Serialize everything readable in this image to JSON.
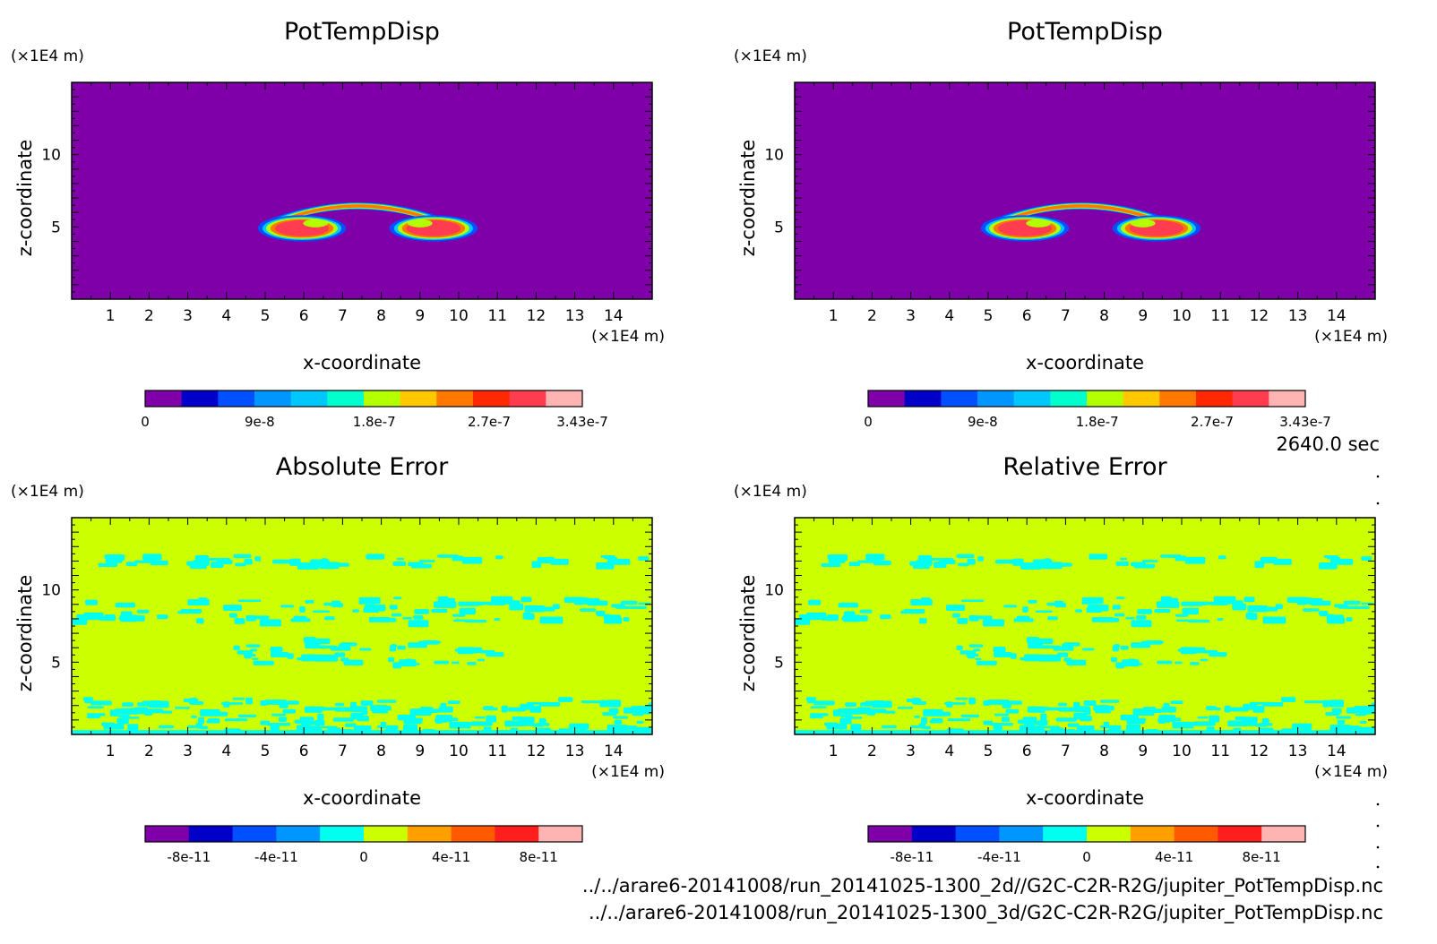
{
  "time_label": "2640.0 sec",
  "file_paths": [
    "../../arare6-20141008/run_20141025-1300_2d//G2C-C2R-R2G/jupiter_PotTempDisp.nc",
    "../../arare6-20141008/run_20141025-1300_3d/G2C-C2R-R2G/jupiter_PotTempDisp.nc"
  ],
  "colors": {
    "purple": "#7f00a8",
    "yellow_green": "#ccff00",
    "cyan": "#00ffee"
  },
  "chart_data": [
    {
      "type": "heatmap",
      "title": "PotTempDisp",
      "xlabel": "x-coordinate",
      "ylabel": "z-coordinate",
      "x_unit": "(×1E4 m)",
      "y_unit": "(×1E4 m)",
      "xlim": [
        0,
        15
      ],
      "ylim": [
        0,
        15
      ],
      "x_ticks": [
        1,
        2,
        3,
        4,
        5,
        6,
        7,
        8,
        9,
        10,
        11,
        12,
        13,
        14
      ],
      "y_ticks": [
        5,
        10
      ],
      "field": "thermal",
      "colorbar": {
        "colors": [
          "#7f00a8",
          "#0000c8",
          "#0050ff",
          "#0096ff",
          "#00c8ff",
          "#00ffcc",
          "#b4ff00",
          "#ffc800",
          "#ff7800",
          "#ff2800",
          "#ff3c50",
          "#ffb4b4"
        ],
        "tick_labels": [
          "0",
          "9e-8",
          "1.8e-7",
          "2.7e-7",
          "3.43e-7"
        ],
        "tick_positions": [
          0,
          0.262,
          0.524,
          0.787,
          1.0
        ],
        "range": [
          0,
          3.43e-07
        ]
      }
    },
    {
      "type": "heatmap",
      "title": "PotTempDisp",
      "xlabel": "x-coordinate",
      "ylabel": "z-coordinate",
      "x_unit": "(×1E4 m)",
      "y_unit": "(×1E4 m)",
      "xlim": [
        0,
        15
      ],
      "ylim": [
        0,
        15
      ],
      "x_ticks": [
        1,
        2,
        3,
        4,
        5,
        6,
        7,
        8,
        9,
        10,
        11,
        12,
        13,
        14
      ],
      "y_ticks": [
        5,
        10
      ],
      "field": "thermal",
      "colorbar": {
        "colors": [
          "#7f00a8",
          "#0000c8",
          "#0050ff",
          "#0096ff",
          "#00c8ff",
          "#00ffcc",
          "#b4ff00",
          "#ffc800",
          "#ff7800",
          "#ff2800",
          "#ff3c50",
          "#ffb4b4"
        ],
        "tick_labels": [
          "0",
          "9e-8",
          "1.8e-7",
          "2.7e-7",
          "3.43e-7"
        ],
        "tick_positions": [
          0,
          0.262,
          0.524,
          0.787,
          1.0
        ],
        "range": [
          0,
          3.43e-07
        ]
      }
    },
    {
      "type": "heatmap",
      "title": "Absolute Error",
      "xlabel": "x-coordinate",
      "ylabel": "z-coordinate",
      "x_unit": "(×1E4 m)",
      "y_unit": "(×1E4 m)",
      "xlim": [
        0,
        15
      ],
      "ylim": [
        0,
        15
      ],
      "x_ticks": [
        1,
        2,
        3,
        4,
        5,
        6,
        7,
        8,
        9,
        10,
        11,
        12,
        13,
        14
      ],
      "y_ticks": [
        5,
        10
      ],
      "field": "error",
      "colorbar": {
        "colors": [
          "#7f00a8",
          "#0000c8",
          "#0050ff",
          "#0096ff",
          "#00ffee",
          "#ccff00",
          "#ffa000",
          "#ff5a00",
          "#ff1e1e",
          "#ffb4b4"
        ],
        "tick_labels": [
          "-8e-11",
          "-4e-11",
          "0",
          "4e-11",
          "8e-11"
        ],
        "tick_positions": [
          0.1,
          0.3,
          0.5,
          0.7,
          0.9
        ],
        "range": [
          -1e-10,
          1e-10
        ]
      }
    },
    {
      "type": "heatmap",
      "title": "Relative Error",
      "xlabel": "x-coordinate",
      "ylabel": "z-coordinate",
      "x_unit": "(×1E4 m)",
      "y_unit": "(×1E4 m)",
      "xlim": [
        0,
        15
      ],
      "ylim": [
        0,
        15
      ],
      "x_ticks": [
        1,
        2,
        3,
        4,
        5,
        6,
        7,
        8,
        9,
        10,
        11,
        12,
        13,
        14
      ],
      "y_ticks": [
        5,
        10
      ],
      "field": "error",
      "colorbar": {
        "colors": [
          "#7f00a8",
          "#0000c8",
          "#0050ff",
          "#0096ff",
          "#00ffee",
          "#ccff00",
          "#ffa000",
          "#ff5a00",
          "#ff1e1e",
          "#ffb4b4"
        ],
        "tick_labels": [
          "-8e-11",
          "-4e-11",
          "0",
          "4e-11",
          "8e-11"
        ],
        "tick_positions": [
          0.1,
          0.3,
          0.5,
          0.7,
          0.9
        ],
        "range": [
          -1e-10,
          1e-10
        ]
      }
    }
  ]
}
